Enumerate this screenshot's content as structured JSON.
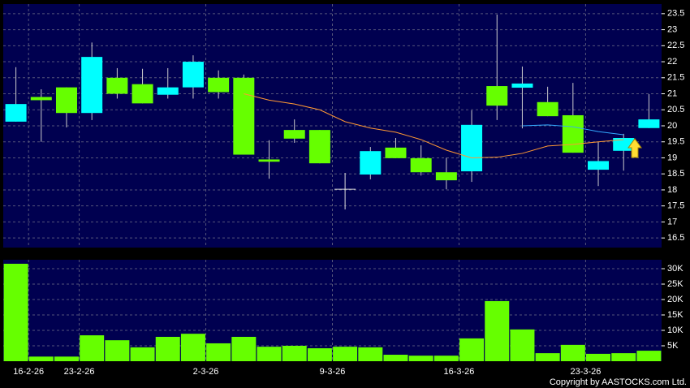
{
  "chart_data": {
    "type": "candlestick",
    "categories": [
      "16-2-26",
      null,
      "23-2-26",
      null,
      null,
      null,
      null,
      "2-3-26",
      null,
      null,
      null,
      null,
      "9-3-26",
      null,
      null,
      null,
      null,
      "16-3-26",
      null,
      null,
      null,
      null,
      "23-3-26",
      null,
      null,
      null
    ],
    "open": [
      20.13,
      20.9,
      21.2,
      20.4,
      21.5,
      21.3,
      20.97,
      21.2,
      21.5,
      21.5,
      18.95,
      19.87,
      19.87,
      18.02,
      18.48,
      19.32,
      18.99,
      18.55,
      18.58,
      21.24,
      21.19,
      20.74,
      20.33,
      18.63,
      19.22,
      19.93
    ],
    "high": [
      21.83,
      21.14,
      21.2,
      22.6,
      21.8,
      21.78,
      21.8,
      22.2,
      21.73,
      21.6,
      19.55,
      20.2,
      19.87,
      18.53,
      19.34,
      19.62,
      19.39,
      19.0,
      20.48,
      23.47,
      21.85,
      21.22,
      21.34,
      19.5,
      19.75,
      20.99
    ],
    "low": [
      20.13,
      19.5,
      19.95,
      20.18,
      20.85,
      20.7,
      20.85,
      20.85,
      20.85,
      19.1,
      18.35,
      19.47,
      18.83,
      17.39,
      18.33,
      18.99,
      18.45,
      18.02,
      18.25,
      20.18,
      19.92,
      20.3,
      19.16,
      18.12,
      18.6,
      19.93
    ],
    "close": [
      20.68,
      20.8,
      20.4,
      22.15,
      21.0,
      20.7,
      21.2,
      22.0,
      21.05,
      19.1,
      18.88,
      19.6,
      18.83,
      18.02,
      19.21,
      18.99,
      18.55,
      18.3,
      20.03,
      20.63,
      21.32,
      20.3,
      19.16,
      18.9,
      19.62,
      20.2
    ],
    "up_color": "#00ffff",
    "down_color": "#66ff00",
    "flat_color": "#dddddd",
    "series": [
      {
        "color": "#ff9933",
        "values": [
          null,
          null,
          null,
          null,
          null,
          null,
          null,
          null,
          null,
          21.0,
          20.8,
          20.68,
          20.5,
          20.13,
          19.93,
          19.8,
          19.57,
          19.24,
          19.0,
          19.02,
          19.14,
          19.37,
          19.42,
          19.5,
          19.57,
          null
        ]
      },
      {
        "color": "#33aaff",
        "values": [
          null,
          null,
          null,
          null,
          null,
          null,
          null,
          null,
          null,
          null,
          null,
          null,
          null,
          null,
          null,
          null,
          null,
          null,
          null,
          null,
          20.0,
          20.03,
          19.97,
          19.82,
          19.72,
          null
        ]
      }
    ],
    "ylim": [
      16.2,
      23.8
    ],
    "yticks": [
      16.5,
      17,
      17.5,
      18,
      18.5,
      19,
      19.5,
      20,
      20.5,
      21,
      21.5,
      22,
      22.5,
      23,
      23.5
    ],
    "volume": {
      "color": "#66ff00",
      "values": [
        31600,
        1500,
        1500,
        8400,
        6800,
        4500,
        7900,
        8900,
        5800,
        7900,
        4700,
        5000,
        4200,
        4700,
        4500,
        2100,
        1800,
        1800,
        7400,
        19500,
        10300,
        2600,
        5300,
        2400,
        2600,
        3400
      ],
      "ylim": [
        0,
        32900
      ],
      "yticks": [
        {
          "value": 5000,
          "label": "5K"
        },
        {
          "value": 10000,
          "label": "10K"
        },
        {
          "value": 15000,
          "label": "15K"
        },
        {
          "value": 20000,
          "label": "20K"
        },
        {
          "value": 25000,
          "label": "25K"
        },
        {
          "value": 30000,
          "label": "30K"
        }
      ]
    },
    "grid": true,
    "copyright": "Copyright by AASTOCKS.com Ltd."
  }
}
